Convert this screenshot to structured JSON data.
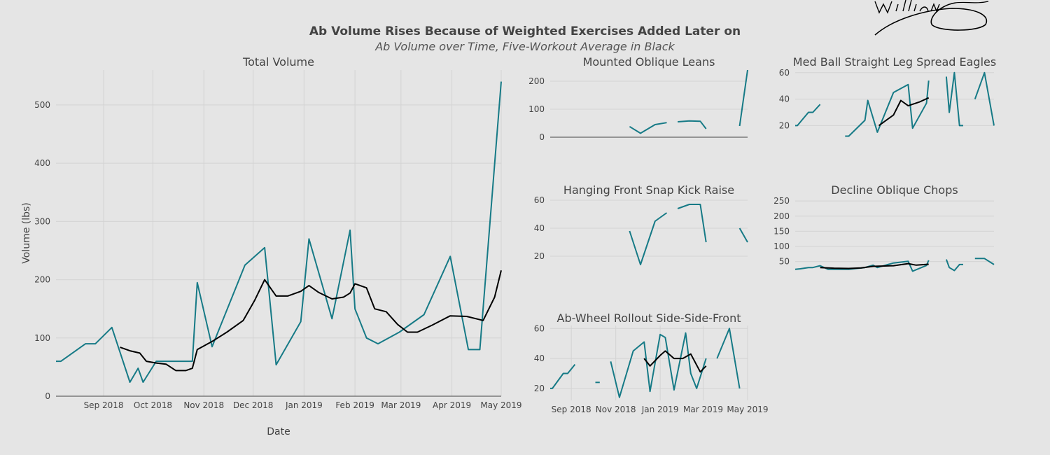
{
  "colors": {
    "series": "#167a86",
    "average": "#000000",
    "background": "#e5e5e5",
    "grid": "#d3d3d3"
  },
  "chart_data": {
    "type": "line",
    "title": "Ab Volume Rises Because of Weighted Exercises Added Later on",
    "subtitle": "Ab Volume over Time, Five-Workout Average in Black",
    "signature": "William Oberhaus",
    "panels": [
      {
        "id": "total",
        "title": "Total Volume",
        "xlabel": "Date",
        "ylabel": "Volume (lbs)",
        "xlim": [
          "2018-08-03",
          "2019-05-01"
        ],
        "ylim": [
          0,
          560
        ],
        "yticks": [
          0,
          100,
          200,
          300,
          400,
          500
        ],
        "xticks": [
          {
            "date": "2018-09-01",
            "label": "Sep 2018"
          },
          {
            "date": "2018-10-01",
            "label": "Oct 2018"
          },
          {
            "date": "2018-11-01",
            "label": "Nov 2018"
          },
          {
            "date": "2018-12-01",
            "label": "Dec 2018"
          },
          {
            "date": "2019-01-01",
            "label": "Jan 2019"
          },
          {
            "date": "2019-02-01",
            "label": "Feb 2019"
          },
          {
            "date": "2019-03-01",
            "label": "Mar 2019"
          },
          {
            "date": "2019-04-01",
            "label": "Apr 2019"
          },
          {
            "date": "2019-05-01",
            "label": "May 2019"
          }
        ],
        "series": [
          {
            "points": [
              [
                "2018-08-03",
                60
              ],
              [
                "2018-08-06",
                60
              ],
              [
                "2018-08-21",
                90
              ],
              [
                "2018-08-27",
                90
              ],
              [
                "2018-09-06",
                118
              ],
              [
                "2018-09-17",
                24
              ],
              [
                "2018-09-22",
                48
              ],
              [
                "2018-09-25",
                24
              ],
              [
                "2018-10-03",
                60
              ],
              [
                "2018-10-25",
                60
              ],
              [
                "2018-10-28",
                195
              ],
              [
                "2018-11-06",
                85
              ],
              [
                "2018-11-26",
                225
              ],
              [
                "2018-12-08",
                255
              ],
              [
                "2018-12-15",
                54
              ],
              [
                "2018-12-30",
                128
              ],
              [
                "2019-01-04",
                270
              ],
              [
                "2019-01-18",
                133
              ],
              [
                "2019-01-29",
                285
              ],
              [
                "2019-02-01",
                150
              ],
              [
                "2019-02-08",
                100
              ],
              [
                "2019-02-15",
                90
              ],
              [
                "2019-02-28",
                110
              ],
              [
                "2019-03-15",
                140
              ],
              [
                "2019-03-31",
                240
              ],
              [
                "2019-04-11",
                80
              ],
              [
                "2019-04-18",
                80
              ],
              [
                "2019-05-01",
                540
              ]
            ]
          }
        ],
        "average": [
          [
            "2018-09-11",
            84
          ],
          [
            "2018-09-17",
            78
          ],
          [
            "2018-09-23",
            74
          ],
          [
            "2018-09-27",
            60
          ],
          [
            "2018-10-03",
            57
          ],
          [
            "2018-10-09",
            55
          ],
          [
            "2018-10-15",
            44
          ],
          [
            "2018-10-21",
            44
          ],
          [
            "2018-10-25",
            48
          ],
          [
            "2018-10-28",
            80
          ],
          [
            "2018-11-06",
            94
          ],
          [
            "2018-11-15",
            110
          ],
          [
            "2018-11-25",
            130
          ],
          [
            "2018-12-02",
            165
          ],
          [
            "2018-12-08",
            200
          ],
          [
            "2018-12-15",
            172
          ],
          [
            "2018-12-22",
            172
          ],
          [
            "2018-12-30",
            180
          ],
          [
            "2019-01-04",
            190
          ],
          [
            "2019-01-10",
            178
          ],
          [
            "2019-01-18",
            167
          ],
          [
            "2019-01-25",
            170
          ],
          [
            "2019-01-29",
            177
          ],
          [
            "2019-02-01",
            193
          ],
          [
            "2019-02-08",
            186
          ],
          [
            "2019-02-13",
            150
          ],
          [
            "2019-02-20",
            145
          ],
          [
            "2019-02-27",
            123
          ],
          [
            "2019-03-05",
            110
          ],
          [
            "2019-03-11",
            110
          ],
          [
            "2019-03-20",
            122
          ],
          [
            "2019-03-31",
            138
          ],
          [
            "2019-04-10",
            137
          ],
          [
            "2019-04-20",
            130
          ],
          [
            "2019-04-27",
            170
          ],
          [
            "2019-05-01",
            216
          ]
        ]
      },
      {
        "id": "mounted",
        "title": "Mounted Oblique Leans",
        "xlim": [
          "2018-08-03",
          "2019-05-01"
        ],
        "ylim": [
          -25,
          240
        ],
        "yticks": [
          0,
          100,
          200
        ],
        "xticks": [],
        "series": [
          {
            "points": [
              [
                "2018-11-20",
                38
              ],
              [
                "2018-12-05",
                14
              ],
              [
                "2018-12-25",
                45
              ],
              [
                "2019-01-10",
                52
              ]
            ]
          },
          {
            "points": [
              [
                "2019-01-25",
                55
              ],
              [
                "2019-02-10",
                58
              ],
              [
                "2019-02-25",
                57
              ],
              [
                "2019-03-05",
                30
              ]
            ]
          },
          {
            "points": [
              [
                "2019-04-20",
                40
              ],
              [
                "2019-05-01",
                240
              ]
            ]
          }
        ]
      },
      {
        "id": "medball",
        "title": "Med Ball Straight Leg Spread Eagles",
        "xlim": [
          "2018-08-03",
          "2019-05-01"
        ],
        "ylim": [
          7,
          62
        ],
        "yticks": [
          20,
          40,
          60
        ],
        "xticks": [],
        "series": [
          {
            "points": [
              [
                "2018-08-03",
                20
              ],
              [
                "2018-08-06",
                20
              ],
              [
                "2018-08-21",
                30
              ],
              [
                "2018-08-27",
                30
              ],
              [
                "2018-09-06",
                36
              ]
            ]
          },
          {
            "points": [
              [
                "2018-10-10",
                12
              ],
              [
                "2018-10-15",
                12
              ],
              [
                "2018-11-06",
                24
              ],
              [
                "2018-11-10",
                39
              ],
              [
                "2018-11-23",
                15
              ],
              [
                "2018-12-15",
                45
              ],
              [
                "2019-01-04",
                51
              ],
              [
                "2019-01-10",
                18
              ],
              [
                "2019-01-29",
                37
              ],
              [
                "2019-02-01",
                54
              ]
            ]
          },
          {
            "points": [
              [
                "2019-02-25",
                57
              ],
              [
                "2019-03-01",
                30
              ],
              [
                "2019-03-08",
                60
              ],
              [
                "2019-03-15",
                20
              ],
              [
                "2019-03-20",
                20
              ]
            ]
          },
          {
            "points": [
              [
                "2019-04-05",
                40
              ],
              [
                "2019-04-18",
                60
              ],
              [
                "2019-05-01",
                20
              ]
            ]
          }
        ],
        "average": [
          [
            "2018-11-25",
            20
          ],
          [
            "2018-12-15",
            28
          ],
          [
            "2018-12-25",
            39
          ],
          [
            "2019-01-04",
            35
          ],
          [
            "2019-01-20",
            38
          ],
          [
            "2019-02-01",
            41
          ]
        ]
      },
      {
        "id": "hanging",
        "title": "Hanging Front Snap Kick Raise",
        "xlim": [
          "2018-08-03",
          "2019-05-01"
        ],
        "ylim": [
          8,
          62
        ],
        "yticks": [
          20,
          40,
          60
        ],
        "xticks": [],
        "series": [
          {
            "points": [
              [
                "2018-11-20",
                38
              ],
              [
                "2018-12-05",
                14
              ],
              [
                "2018-12-25",
                45
              ],
              [
                "2019-01-10",
                51
              ]
            ]
          },
          {
            "points": [
              [
                "2019-01-25",
                54
              ],
              [
                "2019-02-10",
                57
              ],
              [
                "2019-02-25",
                57
              ],
              [
                "2019-03-05",
                30
              ]
            ]
          },
          {
            "points": [
              [
                "2019-04-20",
                40
              ],
              [
                "2019-05-01",
                30
              ]
            ]
          }
        ]
      },
      {
        "id": "decline",
        "title": "Decline Oblique Chops",
        "xlim": [
          "2018-08-03",
          "2019-05-01"
        ],
        "ylim": [
          12,
          262
        ],
        "yticks": [
          50,
          100,
          150,
          200,
          250
        ],
        "xticks": [],
        "series": [
          {
            "points": [
              [
                "2018-08-03",
                24
              ],
              [
                "2018-08-10",
                26
              ],
              [
                "2018-08-21",
                30
              ],
              [
                "2018-08-27",
                30
              ],
              [
                "2018-09-06",
                36
              ],
              [
                "2018-09-17",
                24
              ],
              [
                "2018-09-25",
                24
              ],
              [
                "2018-10-15",
                24
              ],
              [
                "2018-11-06",
                30
              ],
              [
                "2018-11-17",
                38
              ],
              [
                "2018-11-23",
                30
              ],
              [
                "2018-12-15",
                45
              ],
              [
                "2019-01-04",
                51
              ],
              [
                "2019-01-10",
                18
              ],
              [
                "2019-01-29",
                37
              ],
              [
                "2019-02-01",
                54
              ]
            ]
          },
          {
            "points": [
              [
                "2019-02-25",
                57
              ],
              [
                "2019-03-01",
                30
              ],
              [
                "2019-03-08",
                20
              ],
              [
                "2019-03-15",
                40
              ],
              [
                "2019-03-20",
                40
              ]
            ]
          },
          {
            "points": [
              [
                "2019-04-05",
                60
              ],
              [
                "2019-04-18",
                60
              ],
              [
                "2019-05-01",
                40
              ]
            ]
          }
        ],
        "average": [
          [
            "2018-09-06",
            30
          ],
          [
            "2018-09-25",
            28
          ],
          [
            "2018-10-15",
            27
          ],
          [
            "2018-11-01",
            29
          ],
          [
            "2018-11-17",
            34
          ],
          [
            "2018-12-15",
            36
          ],
          [
            "2019-01-04",
            43
          ],
          [
            "2019-01-15",
            38
          ],
          [
            "2019-02-01",
            41
          ]
        ]
      },
      {
        "id": "abwheel",
        "title": "Ab-Wheel Rollout Side-Side-Front",
        "xlim": [
          "2018-08-03",
          "2019-05-01"
        ],
        "ylim": [
          12,
          62
        ],
        "yticks": [
          20,
          40,
          60
        ],
        "xticks": [
          {
            "date": "2018-09-01",
            "label": "Sep 2018"
          },
          {
            "date": "2018-11-01",
            "label": "Nov 2018"
          },
          {
            "date": "2019-01-01",
            "label": "Jan 2019"
          },
          {
            "date": "2019-03-01",
            "label": "Mar 2019"
          },
          {
            "date": "2019-05-01",
            "label": "May 2019"
          }
        ],
        "series": [
          {
            "points": [
              [
                "2018-08-03",
                20
              ],
              [
                "2018-08-06",
                20
              ],
              [
                "2018-08-21",
                30
              ],
              [
                "2018-08-27",
                30
              ],
              [
                "2018-09-06",
                36
              ]
            ]
          },
          {
            "points": [
              [
                "2018-10-04",
                24
              ],
              [
                "2018-10-10",
                24
              ]
            ]
          },
          {
            "points": [
              [
                "2018-10-25",
                38
              ],
              [
                "2018-11-06",
                14
              ],
              [
                "2018-11-25",
                45
              ],
              [
                "2018-12-10",
                51
              ],
              [
                "2018-12-18",
                18
              ],
              [
                "2019-01-01",
                56
              ],
              [
                "2019-01-08",
                54
              ],
              [
                "2019-01-20",
                19
              ],
              [
                "2019-02-05",
                57
              ],
              [
                "2019-02-12",
                30
              ],
              [
                "2019-02-20",
                20
              ],
              [
                "2019-03-05",
                40
              ]
            ]
          },
          {
            "points": [
              [
                "2019-03-20",
                40
              ],
              [
                "2019-04-06",
                60
              ],
              [
                "2019-04-20",
                20
              ]
            ]
          }
        ],
        "average": [
          [
            "2018-12-10",
            40
          ],
          [
            "2018-12-18",
            35
          ],
          [
            "2019-01-01",
            42
          ],
          [
            "2019-01-08",
            45
          ],
          [
            "2019-01-20",
            40
          ],
          [
            "2019-02-01",
            40
          ],
          [
            "2019-02-12",
            43
          ],
          [
            "2019-02-25",
            31
          ],
          [
            "2019-03-05",
            35
          ]
        ]
      }
    ]
  }
}
